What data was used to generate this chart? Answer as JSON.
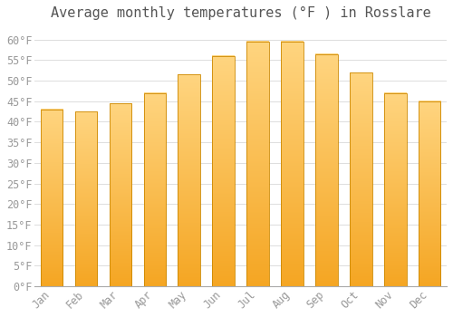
{
  "title": "Average monthly temperatures (°F ) in Rosslare",
  "months": [
    "Jan",
    "Feb",
    "Mar",
    "Apr",
    "May",
    "Jun",
    "Jul",
    "Aug",
    "Sep",
    "Oct",
    "Nov",
    "Dec"
  ],
  "values": [
    43,
    42.5,
    44.5,
    47,
    51.5,
    56,
    59.5,
    59.5,
    56.5,
    52,
    47,
    45
  ],
  "bar_color_bottom": "#F5A623",
  "bar_color_top": "#FFD580",
  "background_color": "#FFFFFF",
  "plot_bg_color": "#FFFFFF",
  "grid_color": "#DDDDDD",
  "ylim": [
    0,
    63
  ],
  "yticks": [
    0,
    5,
    10,
    15,
    20,
    25,
    30,
    35,
    40,
    45,
    50,
    55,
    60
  ],
  "ytick_labels": [
    "0°F",
    "5°F",
    "10°F",
    "15°F",
    "20°F",
    "25°F",
    "30°F",
    "35°F",
    "40°F",
    "45°F",
    "50°F",
    "55°F",
    "60°F"
  ],
  "tick_fontsize": 8.5,
  "title_fontsize": 11,
  "tick_color": "#999999",
  "title_color": "#555555"
}
